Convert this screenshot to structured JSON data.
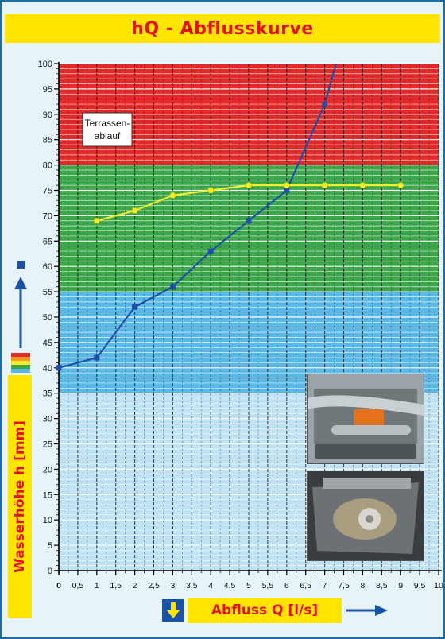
{
  "title": "hQ - Abflusskurve",
  "y_axis_label": "Wasserhöhe h [mm]",
  "x_axis_label": "Abfluss Q [l/s]",
  "zone_label": "Terrassen-\nablauf",
  "zone_label_line1": "Terrassen-",
  "zone_label_line2": "ablauf",
  "colors": {
    "title_bg": "#ffe600",
    "title_text": "#e3111b",
    "frame": "#1a6fa8",
    "zone_red": "#e32a2a",
    "zone_green": "#3ba64a",
    "zone_blue": "#5ab8e6",
    "zone_lightblue": "#bfe2f3",
    "series_blue": "#1f4fa8",
    "series_yellow": "#f2ec2c",
    "arrow_blue": "#1a52a8"
  },
  "chart_data": {
    "type": "line",
    "xlabel": "Abfluss Q [l/s]",
    "ylabel": "Wasserhöhe h [mm]",
    "xlim": [
      0,
      10
    ],
    "ylim": [
      0,
      100
    ],
    "x_ticks": [
      "0",
      "0,5",
      "1",
      "1,5",
      "2",
      "2,5",
      "3",
      "3,5",
      "4",
      "4,5",
      "5",
      "5,5",
      "6",
      "6,5",
      "7",
      "7,5",
      "8",
      "8,5",
      "9",
      "9,5",
      "10"
    ],
    "y_ticks": [
      "0",
      "5",
      "10",
      "15",
      "20",
      "25",
      "30",
      "35",
      "40",
      "45",
      "50",
      "55",
      "60",
      "65",
      "70",
      "75",
      "80",
      "85",
      "90",
      "95",
      "100"
    ],
    "bands": [
      {
        "from": 80,
        "to": 100,
        "color": "#e32a2a"
      },
      {
        "from": 55,
        "to": 80,
        "color": "#3ba64a"
      },
      {
        "from": 35,
        "to": 55,
        "color": "#5ab8e6"
      },
      {
        "from": 0,
        "to": 35,
        "color": "#bfe2f3"
      }
    ],
    "series": [
      {
        "color": "#1f4fa8",
        "marker": "square",
        "x": [
          0,
          1,
          2,
          3,
          4,
          5,
          6,
          7,
          7.3
        ],
        "y": [
          40,
          42,
          52,
          56,
          63,
          69,
          75,
          92,
          100
        ],
        "marker_count": 8
      },
      {
        "color": "#f2ec2c",
        "marker": "circle",
        "x": [
          1,
          2,
          3,
          4,
          5,
          6,
          7,
          8,
          9
        ],
        "y": [
          69,
          71,
          74,
          75,
          76,
          76,
          76,
          76,
          76
        ],
        "marker_count": 9
      }
    ]
  }
}
